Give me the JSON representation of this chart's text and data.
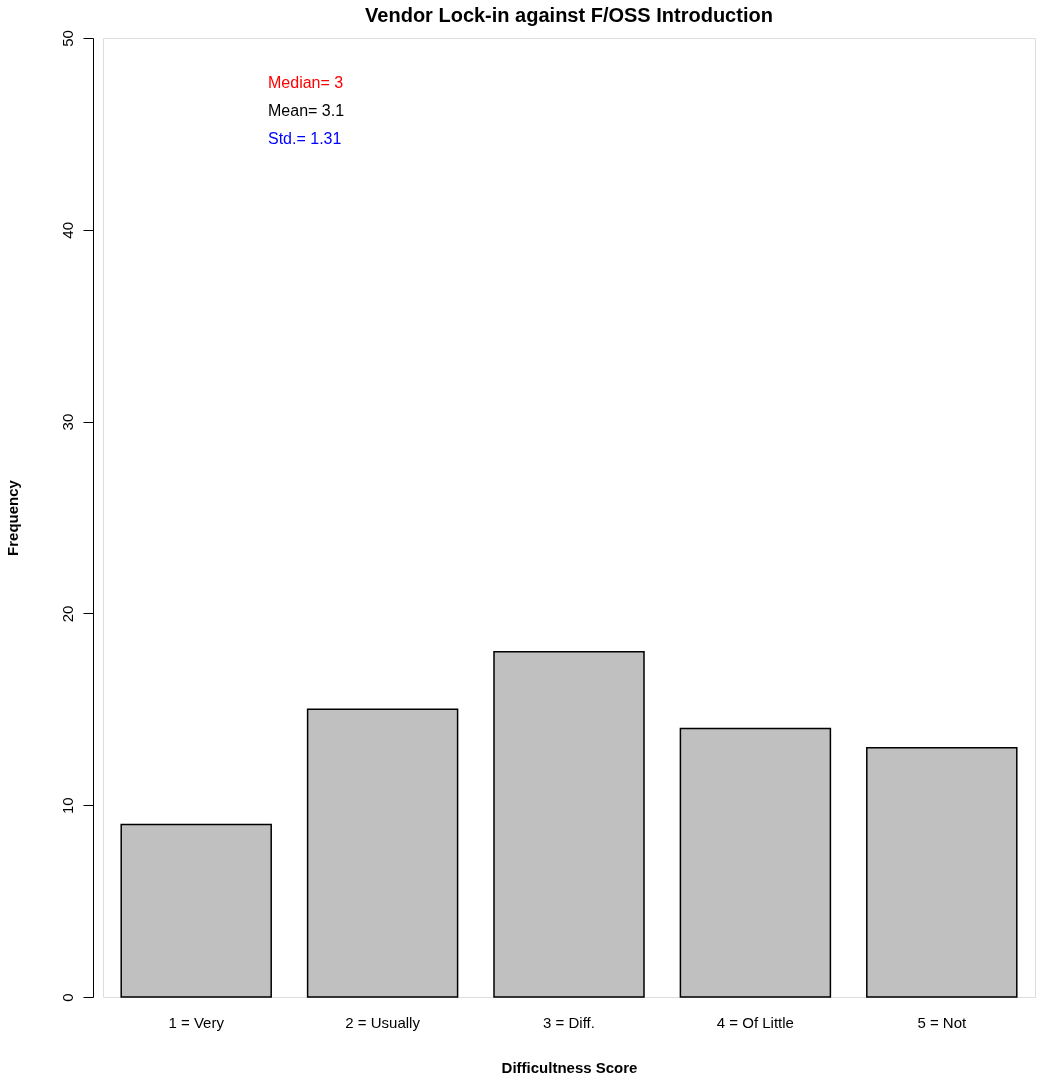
{
  "chart_data": {
    "type": "bar",
    "title": "Vendor Lock-in against F/OSS Introduction",
    "xlabel": "Difficultness Score",
    "ylabel": "Frequency",
    "categories": [
      "1 = Very",
      "2 = Usually",
      "3 = Diff.",
      "4 = Of Little",
      "5 = Not"
    ],
    "values": [
      9,
      15,
      18,
      14,
      13
    ],
    "color": "#c0c0c0",
    "ylim": [
      0,
      50
    ],
    "yticks": [
      0,
      10,
      20,
      30,
      40,
      50
    ],
    "grid": false,
    "annotations": [
      "Median= 3",
      "Mean= 3.1",
      "Std.= 1.31"
    ]
  }
}
